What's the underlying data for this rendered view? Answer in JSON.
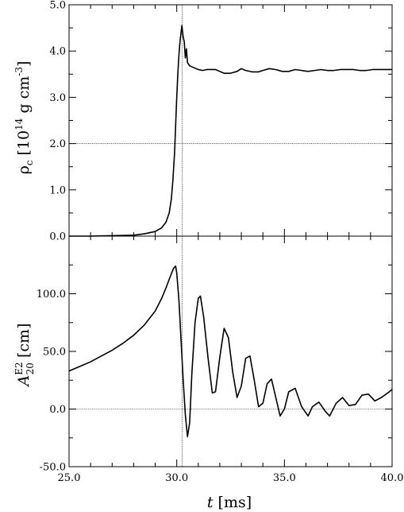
{
  "chart_data": [
    {
      "type": "line",
      "panel": "top",
      "xlim": [
        25.0,
        40.0
      ],
      "ylim": [
        0.0,
        5.0
      ],
      "ylabel": {
        "symbol": "ρ",
        "sub": "c",
        "open": " [10",
        "exp": "14",
        "unit": " g cm",
        "unit_exp": "-3",
        "close": "]"
      },
      "yticks": [
        0.0,
        1.0,
        2.0,
        3.0,
        4.0,
        5.0
      ],
      "ytick_labels": [
        "0.0",
        "1.0",
        "2.0",
        "3.0",
        "4.0",
        "5.0"
      ],
      "reference_hline": 2.0,
      "reference_vline": 30.25,
      "grid": false,
      "series": [
        {
          "x": [
            25.0,
            26.0,
            27.0,
            28.0,
            28.5,
            29.0,
            29.3,
            29.5,
            29.65,
            29.75,
            29.82,
            29.9,
            29.95,
            30.0,
            30.05,
            30.1,
            30.15,
            30.2,
            30.24,
            30.3,
            30.35,
            30.4,
            30.45,
            30.5,
            30.6,
            30.75,
            30.9,
            31.0,
            31.2,
            31.4,
            31.6,
            31.8,
            32.0,
            32.2,
            32.5,
            32.8,
            33.0,
            33.2,
            33.5,
            33.8,
            34.0,
            34.3,
            34.6,
            34.9,
            35.2,
            35.5,
            35.8,
            36.1,
            36.4,
            36.7,
            37.0,
            37.3,
            37.6,
            37.9,
            38.2,
            38.5,
            38.8,
            39.1,
            39.4,
            39.7,
            40.0
          ],
          "y": [
            0.0,
            0.0,
            0.01,
            0.02,
            0.05,
            0.1,
            0.18,
            0.3,
            0.5,
            0.8,
            1.2,
            1.8,
            2.4,
            3.0,
            3.5,
            3.9,
            4.2,
            4.4,
            4.55,
            4.3,
            4.2,
            3.85,
            4.05,
            3.75,
            3.68,
            3.65,
            3.62,
            3.6,
            3.58,
            3.6,
            3.6,
            3.6,
            3.56,
            3.52,
            3.52,
            3.56,
            3.62,
            3.58,
            3.55,
            3.55,
            3.58,
            3.62,
            3.6,
            3.56,
            3.56,
            3.6,
            3.58,
            3.56,
            3.58,
            3.6,
            3.58,
            3.58,
            3.6,
            3.6,
            3.6,
            3.58,
            3.58,
            3.6,
            3.6,
            3.6,
            3.6
          ]
        }
      ]
    },
    {
      "type": "line",
      "panel": "bottom",
      "xlim": [
        25.0,
        40.0
      ],
      "ylim": [
        -50.0,
        150.0
      ],
      "xlabel": {
        "symbol": "t",
        "unit": " [ms]"
      },
      "ylabel": {
        "symbol": "A",
        "sub": "20",
        "sup": "E2",
        "unit": " [cm]"
      },
      "xticks": [
        25.0,
        30.0,
        35.0,
        40.0
      ],
      "xtick_labels": [
        "25.0",
        "30.0",
        "35.0",
        "40.0"
      ],
      "yticks": [
        -50.0,
        0.0,
        50.0,
        100.0
      ],
      "ytick_labels": [
        "-50.0",
        "0.0",
        "50.0",
        "100.0"
      ],
      "reference_hline": 0.0,
      "reference_vline": 30.25,
      "grid": false,
      "series": [
        {
          "x": [
            25.0,
            25.5,
            26.0,
            26.5,
            27.0,
            27.5,
            28.0,
            28.5,
            29.0,
            29.3,
            29.5,
            29.7,
            29.85,
            29.95,
            30.0,
            30.1,
            30.2,
            30.3,
            30.4,
            30.5,
            30.6,
            30.7,
            30.85,
            31.0,
            31.1,
            31.25,
            31.45,
            31.65,
            31.8,
            32.0,
            32.2,
            32.4,
            32.6,
            32.8,
            33.0,
            33.2,
            33.4,
            33.6,
            33.8,
            34.0,
            34.2,
            34.4,
            34.6,
            34.8,
            35.0,
            35.2,
            35.5,
            35.8,
            36.1,
            36.3,
            36.6,
            36.9,
            37.1,
            37.4,
            37.7,
            38.0,
            38.3,
            38.6,
            38.9,
            39.2,
            39.5,
            39.8,
            40.0
          ],
          "y": [
            33,
            37,
            41,
            46,
            51,
            57,
            64,
            73,
            85,
            96,
            105,
            115,
            122,
            124,
            118,
            95,
            60,
            25,
            -5,
            -24,
            -12,
            30,
            75,
            96,
            98,
            80,
            45,
            14,
            15,
            45,
            70,
            62,
            32,
            10,
            20,
            44,
            46,
            25,
            2,
            5,
            22,
            26,
            10,
            -6,
            0,
            15,
            18,
            2,
            -6,
            2,
            6,
            -2,
            -6,
            5,
            10,
            3,
            4,
            12,
            13,
            7,
            10,
            14,
            17
          ]
        }
      ]
    }
  ]
}
